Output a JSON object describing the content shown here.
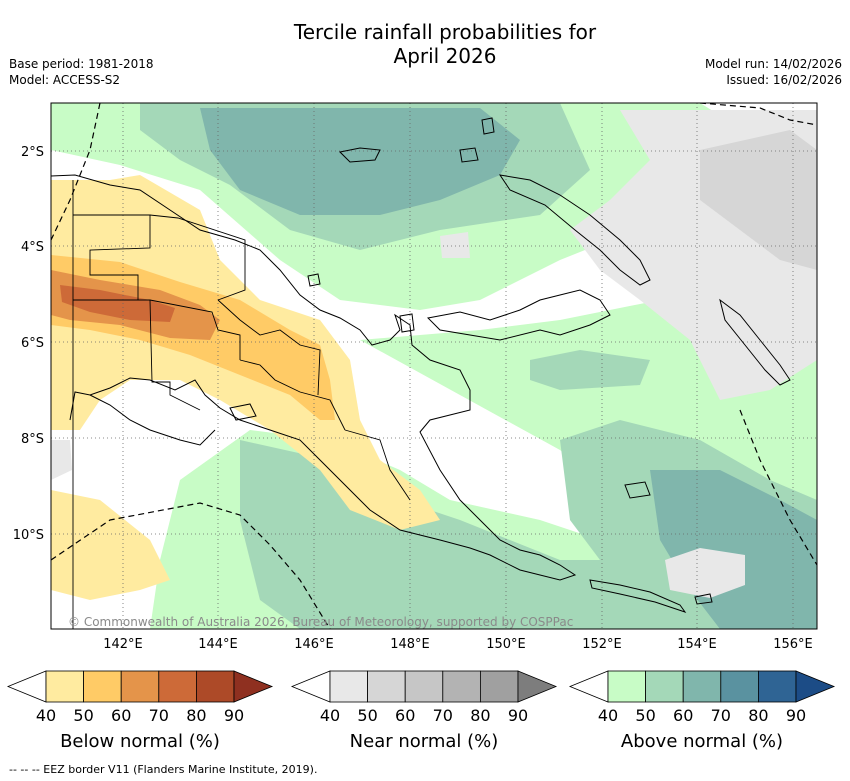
{
  "header": {
    "title_line1": "Tercile rainfall probabilities for",
    "title_line2": "April 2026",
    "base_period": "Base period: 1981-2018",
    "model": "Model: ACCESS-S2",
    "model_run": "Model run: 14/02/2026",
    "issued": "Issued: 16/02/2026"
  },
  "map": {
    "lat_ticks": [
      "2°S",
      "4°S",
      "6°S",
      "8°S",
      "10°S"
    ],
    "lon_ticks": [
      "142°E",
      "144°E",
      "146°E",
      "148°E",
      "150°E",
      "152°E",
      "154°E",
      "156°E"
    ],
    "copyright": "© Commonwealth of Australia 2026, Bureau of Meteorology, supported by COSPPac"
  },
  "colorbars": [
    {
      "title": "Below normal (%)",
      "labels": [
        "40",
        "50",
        "60",
        "70",
        "80",
        "90"
      ],
      "colors": [
        "#ffeba0",
        "#ffcb66",
        "#e4944a",
        "#cd6a38",
        "#ad4a28",
        "#8f3020"
      ]
    },
    {
      "title": "Near normal (%)",
      "labels": [
        "40",
        "50",
        "60",
        "70",
        "80",
        "90"
      ],
      "colors": [
        "#e8e8e8",
        "#d6d6d6",
        "#c6c6c6",
        "#b3b3b3",
        "#a0a0a0",
        "#7d7d7d"
      ]
    },
    {
      "title": "Above normal (%)",
      "labels": [
        "40",
        "50",
        "60",
        "70",
        "80",
        "90"
      ],
      "colors": [
        "#c8fcc6",
        "#a4d8b8",
        "#80b6ac",
        "#5a92a0",
        "#2f6494",
        "#1c4c86"
      ]
    }
  ],
  "footnote": "--  --  -- EEZ border V11 (Flanders Marine Institute, 2019)."
}
